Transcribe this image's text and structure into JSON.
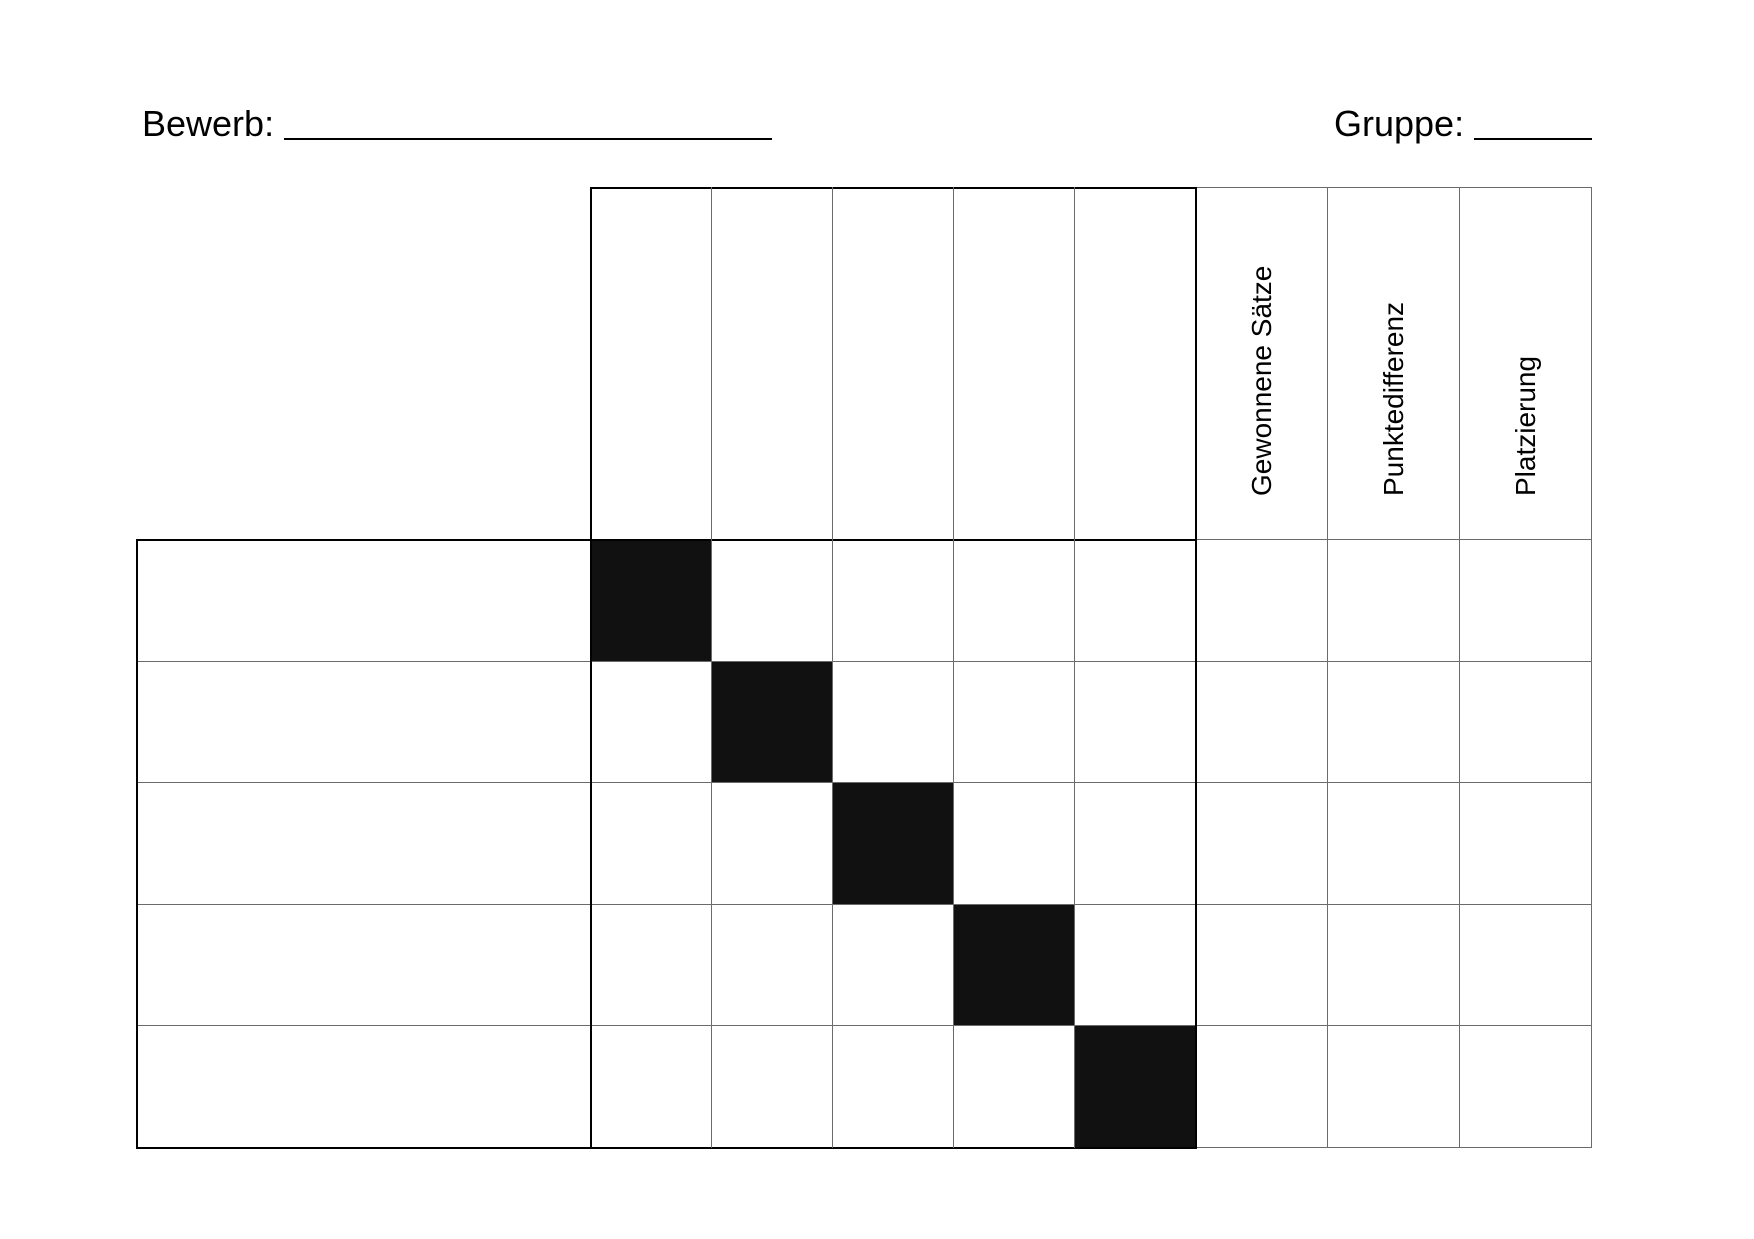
{
  "header": {
    "event_label": "Bewerb:",
    "group_label": "Gruppe:"
  },
  "table": {
    "player_rows": 5,
    "opponent_columns": 5,
    "result_columns": [
      {
        "label": "Gewonnene Sätze"
      },
      {
        "label": "Punktedifferenz"
      },
      {
        "label": "Platzierung"
      }
    ],
    "blocked_cell_color": "#111111"
  }
}
